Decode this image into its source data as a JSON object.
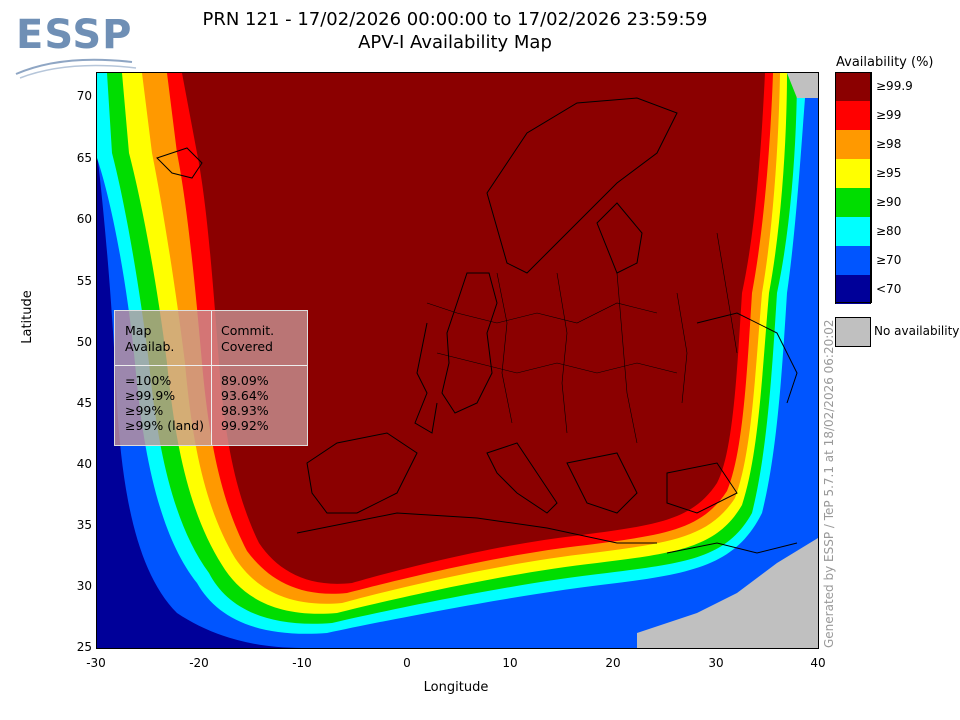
{
  "logo": {
    "text": "ESSP"
  },
  "header": {
    "title_line1": "PRN 121 - 17/02/2026 00:00:00 to 17/02/2026 23:59:59",
    "title_line2": "APV-I Availability Map"
  },
  "axes": {
    "xlabel": "Longitude",
    "ylabel": "Latitude",
    "x_ticks": [
      "-30",
      "-20",
      "-10",
      "0",
      "10",
      "20",
      "30",
      "40"
    ],
    "y_ticks": [
      "70",
      "65",
      "60",
      "55",
      "50",
      "45",
      "40",
      "35",
      "30",
      "25"
    ],
    "xlim": [
      -30,
      40
    ],
    "ylim": [
      25,
      72
    ]
  },
  "legend": {
    "title": "Availability (%)",
    "items": [
      {
        "label": "≥99.9",
        "color": "#8b0000"
      },
      {
        "label": "≥99",
        "color": "#ff0000"
      },
      {
        "label": "≥98",
        "color": "#ff9900"
      },
      {
        "label": "≥95",
        "color": "#ffff00"
      },
      {
        "label": "≥90",
        "color": "#00dd00"
      },
      {
        "label": "≥80",
        "color": "#00ffff"
      },
      {
        "label": "≥70",
        "color": "#0055ff"
      },
      {
        "label": "<70",
        "color": "#000099"
      }
    ],
    "no_availability": {
      "label": "No availability",
      "color": "#c0c0c0"
    }
  },
  "stats_table": {
    "col1_header": [
      "Map",
      "Availab."
    ],
    "col2_header": [
      "Commit.",
      "Covered"
    ],
    "rows": [
      {
        "level": "=100%",
        "covered": "89.09%"
      },
      {
        "level": "≥99.9%",
        "covered": "93.64%"
      },
      {
        "level": "≥99%",
        "covered": "98.93%"
      },
      {
        "level": "≥99% (land)",
        "covered": "99.92%"
      }
    ]
  },
  "credit": "Generated by ESSP / TeP 5.7.1 at 18/02/2026 06:20:02"
}
